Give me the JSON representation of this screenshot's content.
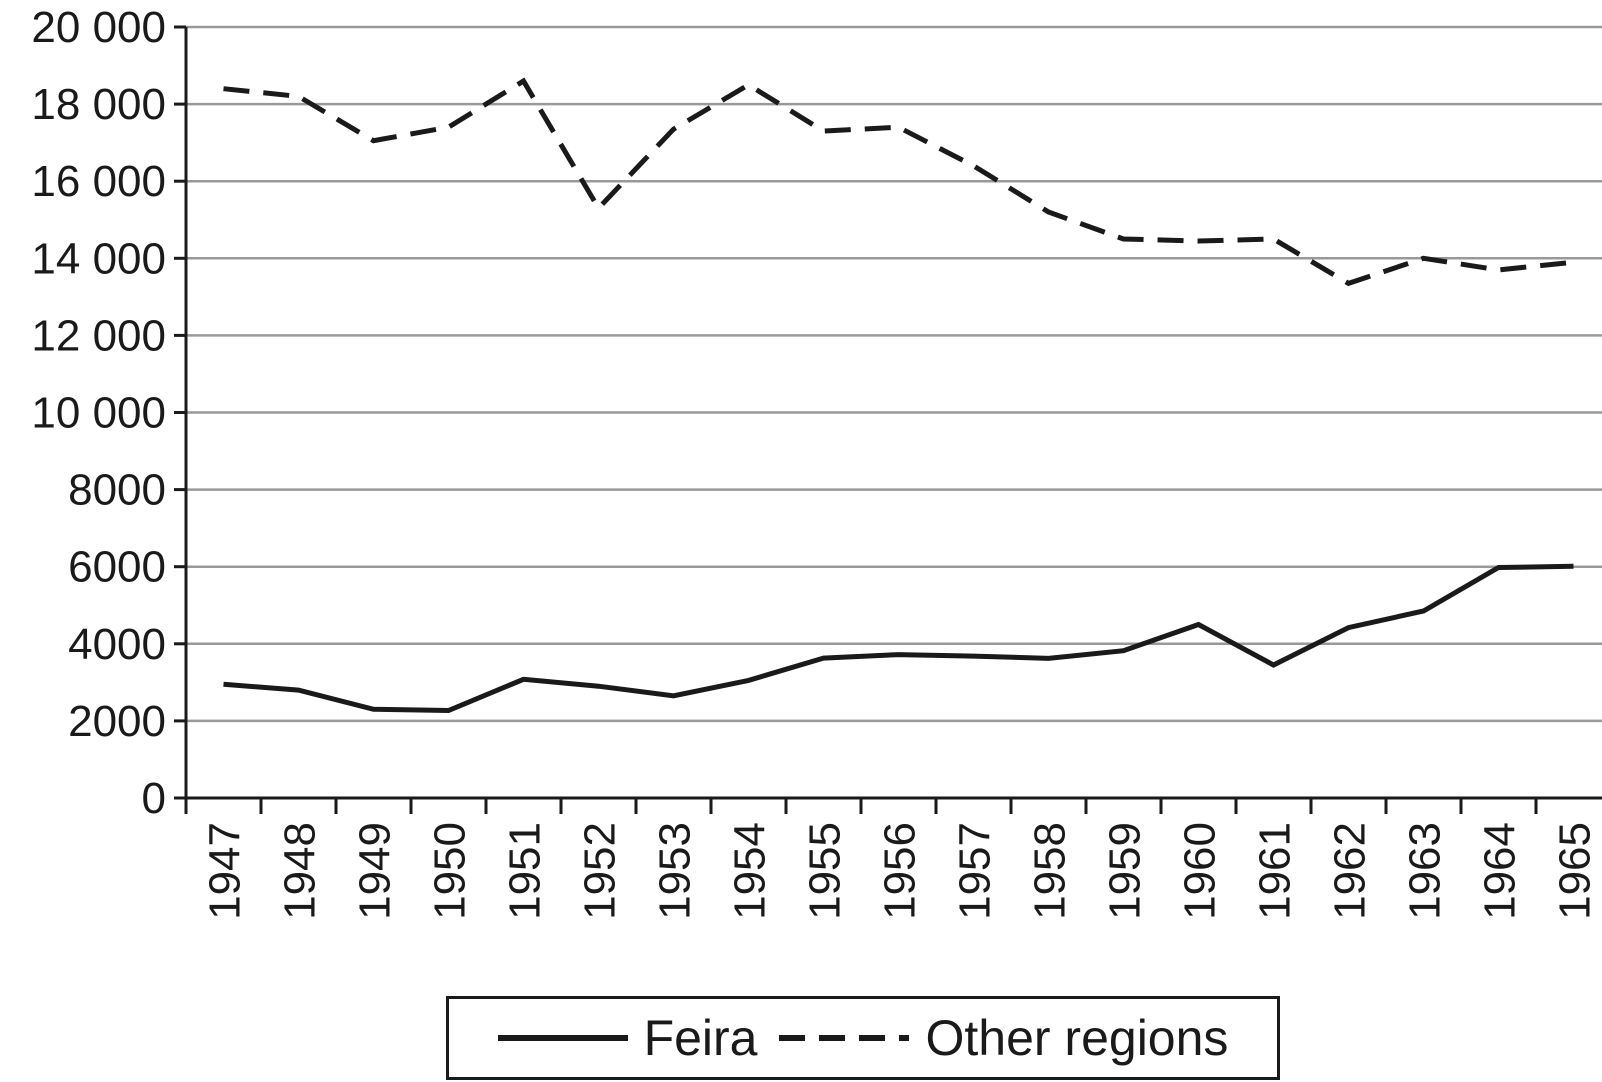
{
  "chart_data": {
    "type": "line",
    "title": "",
    "xlabel": "",
    "ylabel": "",
    "x": [
      "1947",
      "1948",
      "1949",
      "1950",
      "1951",
      "1952",
      "1953",
      "1954",
      "1955",
      "1956",
      "1957",
      "1958",
      "1959",
      "1960",
      "1961",
      "1962",
      "1963",
      "1964",
      "1965"
    ],
    "ylim": [
      0,
      20000
    ],
    "yticks": [
      0,
      2000,
      4000,
      6000,
      8000,
      10000,
      12000,
      14000,
      16000,
      18000,
      20000
    ],
    "ytick_labels": [
      "0",
      "2000",
      "4000",
      "6000",
      "8000",
      "10 000",
      "12 000",
      "14 000",
      "16 000",
      "18 000",
      "20 000"
    ],
    "grid": "horizontal",
    "legend_position": "bottom-center",
    "series": [
      {
        "name": "Feira",
        "style": "solid",
        "color": "#1a1a1a",
        "values": [
          2950,
          2800,
          2300,
          2270,
          3080,
          2900,
          2650,
          3050,
          3630,
          3720,
          3680,
          3620,
          3820,
          4500,
          3450,
          4420,
          4850,
          5980,
          6010
        ]
      },
      {
        "name": "Other regions",
        "style": "dashed",
        "color": "#1a1a1a",
        "values": [
          18400,
          18200,
          17050,
          17400,
          18600,
          15300,
          17350,
          18500,
          17300,
          17400,
          16400,
          15200,
          14500,
          14450,
          14500,
          13350,
          14000,
          13700,
          13900
        ]
      }
    ]
  },
  "colors": {
    "axis": "#1a1a1a",
    "grid": "#999999",
    "background": "#ffffff"
  }
}
